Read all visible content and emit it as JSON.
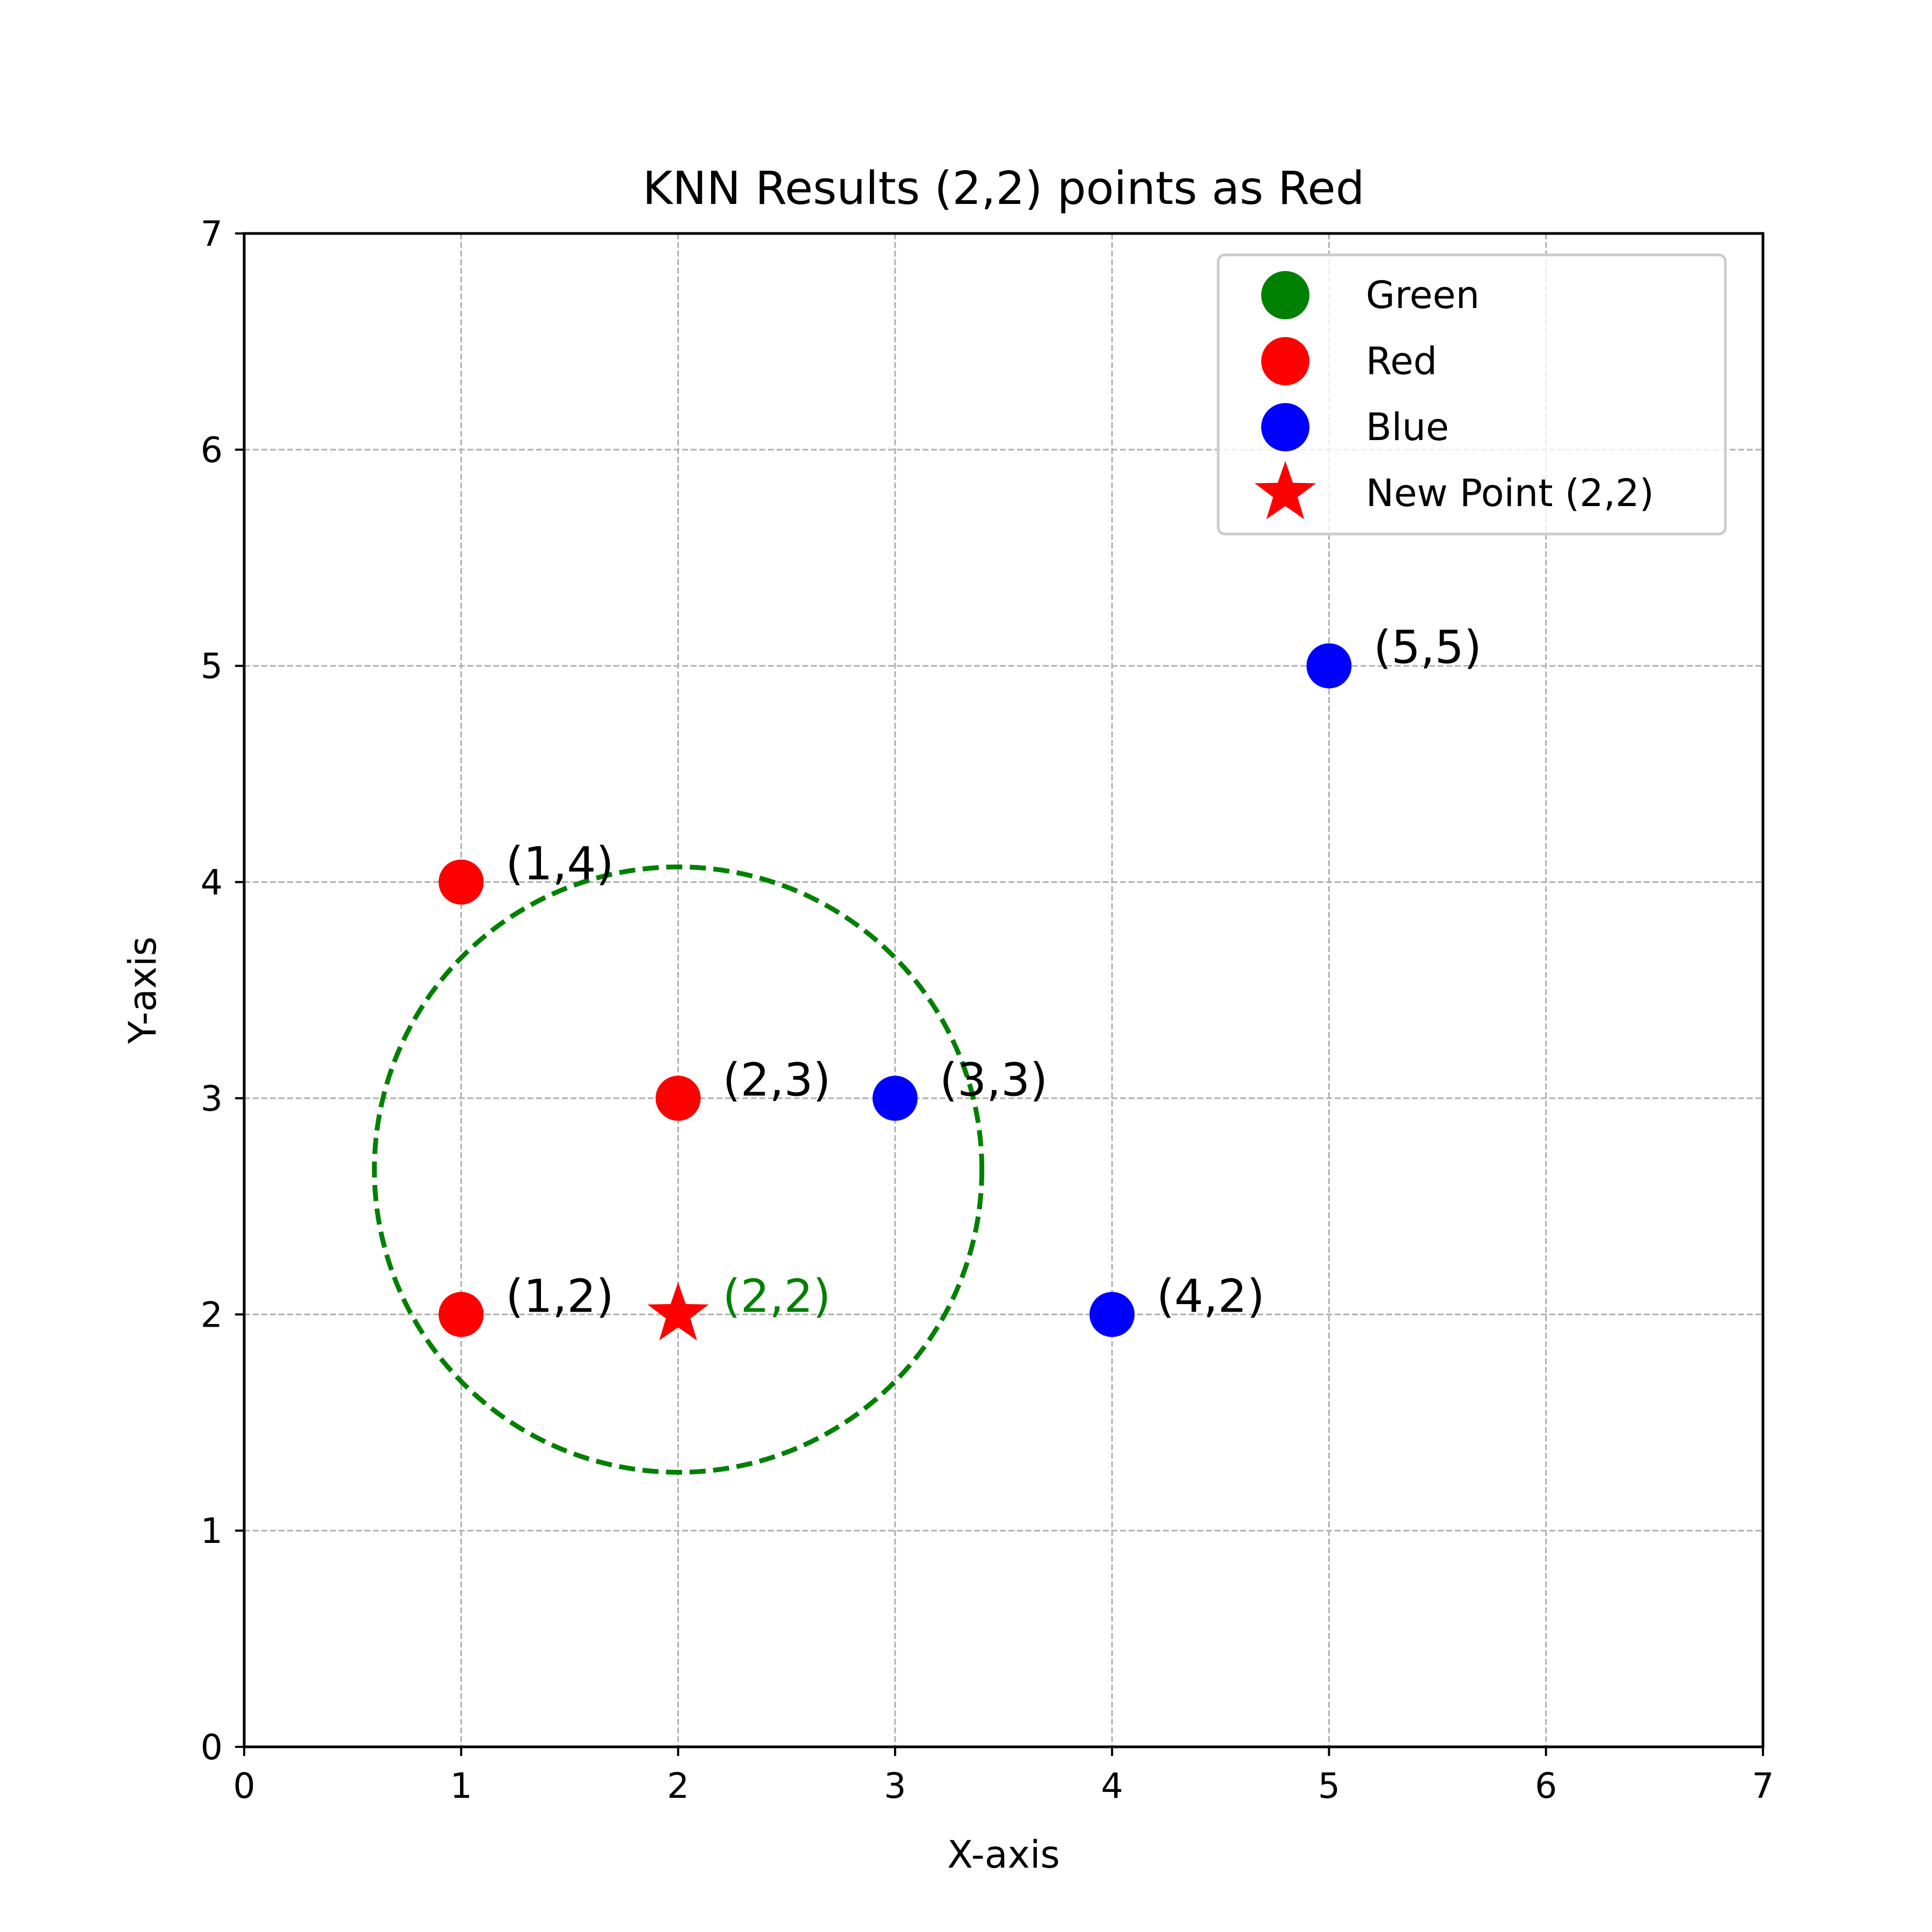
{
  "chart_data": {
    "type": "scatter",
    "title": "KNN Results (2,2) points as Red",
    "xlabel": "X-axis",
    "ylabel": "Y-axis",
    "xlim": [
      0,
      7
    ],
    "ylim": [
      0,
      7
    ],
    "xticks": [
      0,
      1,
      2,
      3,
      4,
      5,
      6,
      7
    ],
    "yticks": [
      0,
      1,
      2,
      3,
      4,
      5,
      6,
      7
    ],
    "grid": true,
    "legend_position": "top-right",
    "legend": [
      {
        "label": "Green",
        "marker": "circle",
        "color": "#008000"
      },
      {
        "label": "Red",
        "marker": "circle",
        "color": "#ff0000"
      },
      {
        "label": "Blue",
        "marker": "circle",
        "color": "#0000ff"
      },
      {
        "label": "New Point (2,2)",
        "marker": "star",
        "color": "#ff0000"
      }
    ],
    "series": [
      {
        "color": "#ff0000",
        "marker": "circle",
        "points": [
          {
            "x": 1,
            "y": 4,
            "label": "(1,4)"
          },
          {
            "x": 2,
            "y": 3,
            "label": "(2,3)"
          },
          {
            "x": 1,
            "y": 2,
            "label": "(1,2)"
          }
        ]
      },
      {
        "color": "#0000ff",
        "marker": "circle",
        "points": [
          {
            "x": 5,
            "y": 5,
            "label": "(5,5)"
          },
          {
            "x": 3,
            "y": 3,
            "label": "(3,3)"
          },
          {
            "x": 4,
            "y": 2,
            "label": "(4,2)"
          }
        ]
      }
    ],
    "new_point": {
      "x": 2,
      "y": 2,
      "label": "(2,2)",
      "color": "#ff0000",
      "label_color": "#008000",
      "marker": "star"
    },
    "neighborhood_circle": {
      "center_x": 2,
      "center_y": 2.67,
      "radius": 1.4,
      "color": "#008000",
      "style": "dashed"
    }
  }
}
